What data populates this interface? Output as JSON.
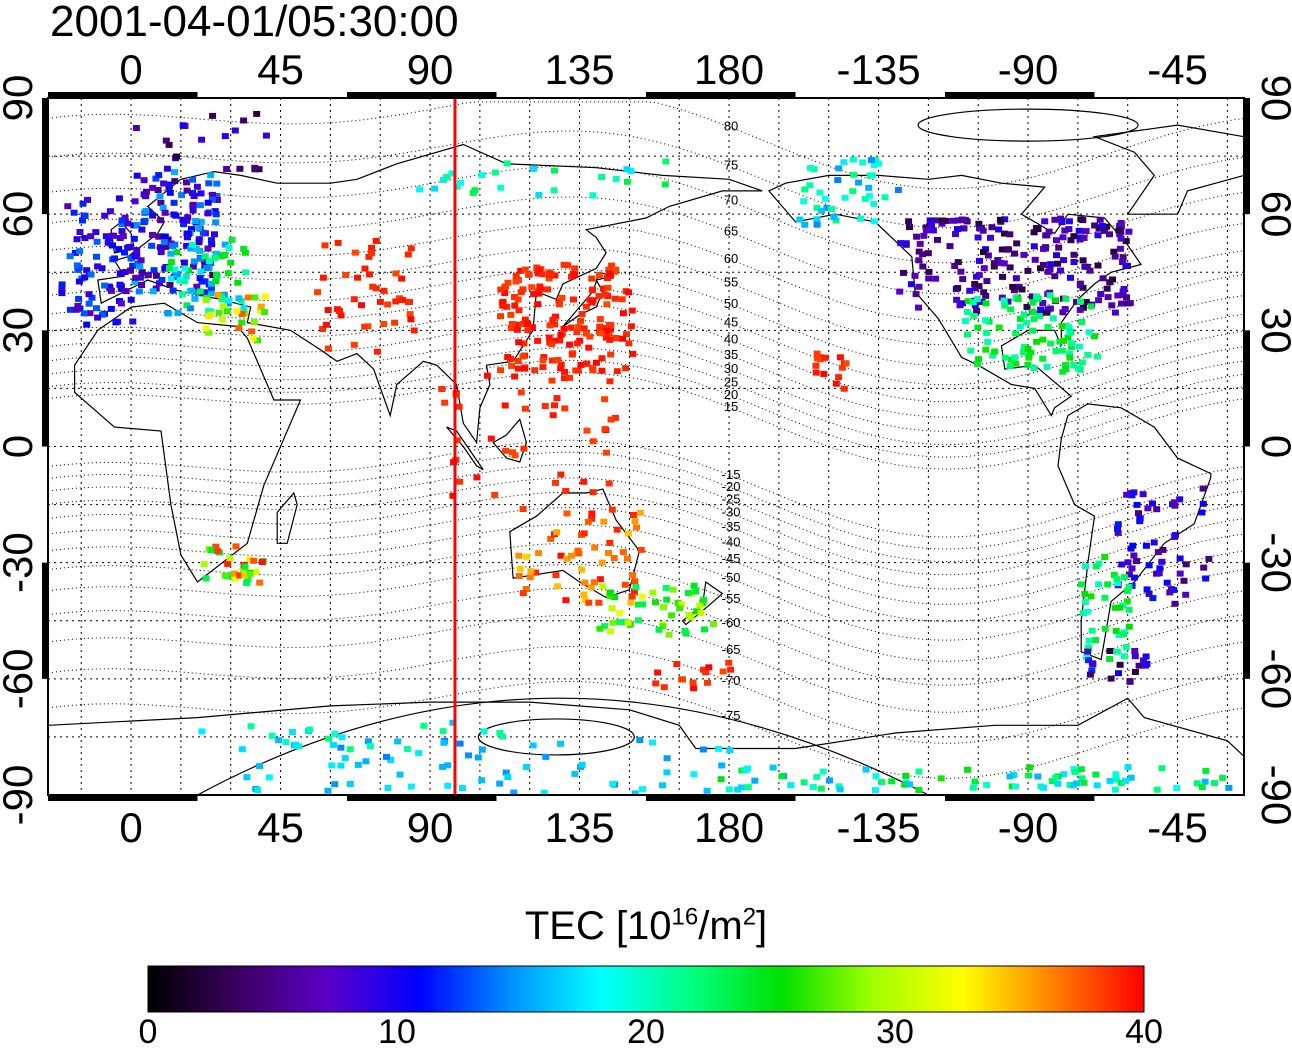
{
  "title": "2001-04-01/05:30:00",
  "map": {
    "lon_ticks": [
      "0",
      "45",
      "90",
      "135",
      "180",
      "-135",
      "-90",
      "-45"
    ],
    "lat_ticks": [
      "90",
      "60",
      "30",
      "0",
      "-30",
      "-60",
      "-90"
    ],
    "lon_range": [
      -25,
      335
    ],
    "lat_range": [
      -90,
      90
    ],
    "dip_contour_labels": [
      "80",
      "75",
      "70",
      "65",
      "60",
      "55",
      "50",
      "45",
      "40",
      "35",
      "30",
      "25",
      "20",
      "15",
      "-15",
      "-20",
      "-25",
      "-30",
      "-35",
      "-40",
      "-45",
      "-50",
      "-55",
      "-60",
      "-65",
      "-70",
      "-75"
    ],
    "terminator_lon": 97.5,
    "colors": {
      "terminator": "#ff0000",
      "grid": "#000000",
      "coast": "#000000"
    }
  },
  "colorbar": {
    "title_main": "TEC  [10",
    "title_exp1": "16",
    "title_mid": "/m",
    "title_exp2": "2",
    "title_end": "]",
    "ticks": [
      "0",
      "10",
      "20",
      "30",
      "40"
    ],
    "range": [
      0,
      40
    ],
    "stops": [
      "#000000",
      "#3a0060",
      "#5a00c8",
      "#0000ff",
      "#0090ff",
      "#00ffff",
      "#00ff80",
      "#00e000",
      "#a0ff00",
      "#ffff00",
      "#ff8000",
      "#ff0000"
    ]
  }
}
